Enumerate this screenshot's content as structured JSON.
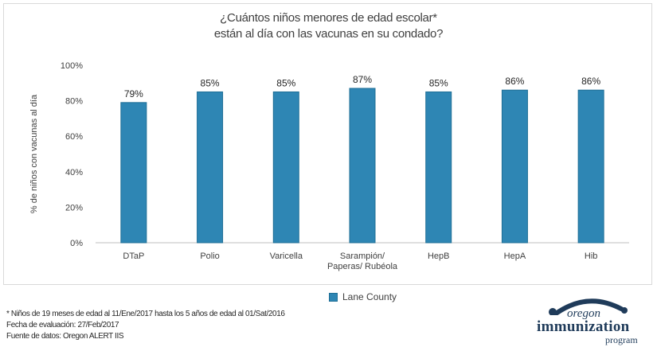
{
  "chart_data": {
    "type": "bar",
    "title_lines": [
      "¿Cuántos niños menores de edad escolar*",
      "están al día con las vacunas en su condado?"
    ],
    "ylabel": "% de niños con vacunas al día",
    "ylim": [
      0,
      100
    ],
    "yticks": [
      "0%",
      "20%",
      "40%",
      "60%",
      "80%",
      "100%"
    ],
    "categories": [
      [
        "DTaP"
      ],
      [
        "Polio"
      ],
      [
        "Varicella"
      ],
      [
        "Sarampión/",
        "Paperas/ Rubéola"
      ],
      [
        "HepB"
      ],
      [
        "HepA"
      ],
      [
        "Hib"
      ]
    ],
    "series": [
      {
        "name": "Lane County",
        "values": [
          79,
          85,
          85,
          87,
          85,
          86,
          86
        ],
        "labels": [
          "79%",
          "85%",
          "85%",
          "87%",
          "85%",
          "86%",
          "86%"
        ],
        "color": "#2e86b4"
      }
    ],
    "grid": false,
    "legend_position": "bottom"
  },
  "footnotes": [
    "* Niños de 19 meses de edad al 11/Ene/2017 hasta los 5 años de edad al 01/Sat/2016",
    "Fecha de evaluación: 27/Feb/2017",
    "Fuente de datos: Oregon ALERT IIS"
  ],
  "logo": {
    "line1": "oregon",
    "line2": "immunization",
    "line3": "program"
  }
}
